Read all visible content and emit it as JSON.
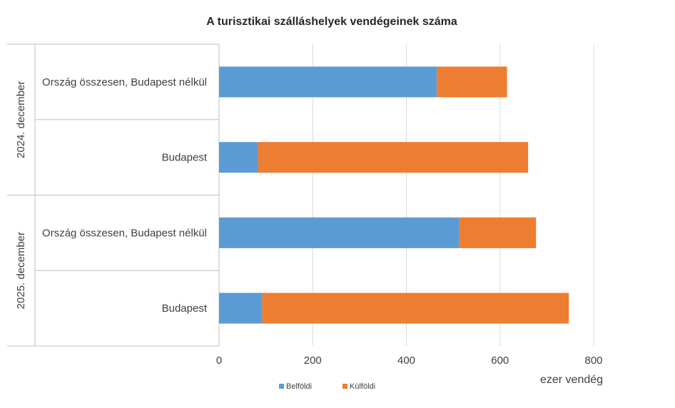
{
  "chart_data": {
    "type": "bar",
    "orientation": "horizontal",
    "stacked": true,
    "title": "A turisztikai szálláshelyek vendégeinek száma",
    "xlabel": "ezer vendég",
    "xlim": [
      0,
      800
    ],
    "xticks": [
      0,
      200,
      400,
      600,
      800
    ],
    "grid": true,
    "legend_position": "bottom",
    "groups": [
      {
        "label": "2024. december",
        "categories": [
          "Ország összesen, Budapest nélkül",
          "Budapest"
        ]
      },
      {
        "label": "2025. december",
        "categories": [
          "Ország összesen, Budapest nélkül",
          "Budapest"
        ]
      }
    ],
    "series": [
      {
        "name": "Belföldi",
        "color": "#5B9BD5",
        "values": [
          465,
          83,
          513,
          92
        ]
      },
      {
        "name": "Külföldi",
        "color": "#ED7D31",
        "values": [
          150,
          577,
          164,
          655
        ]
      }
    ]
  }
}
